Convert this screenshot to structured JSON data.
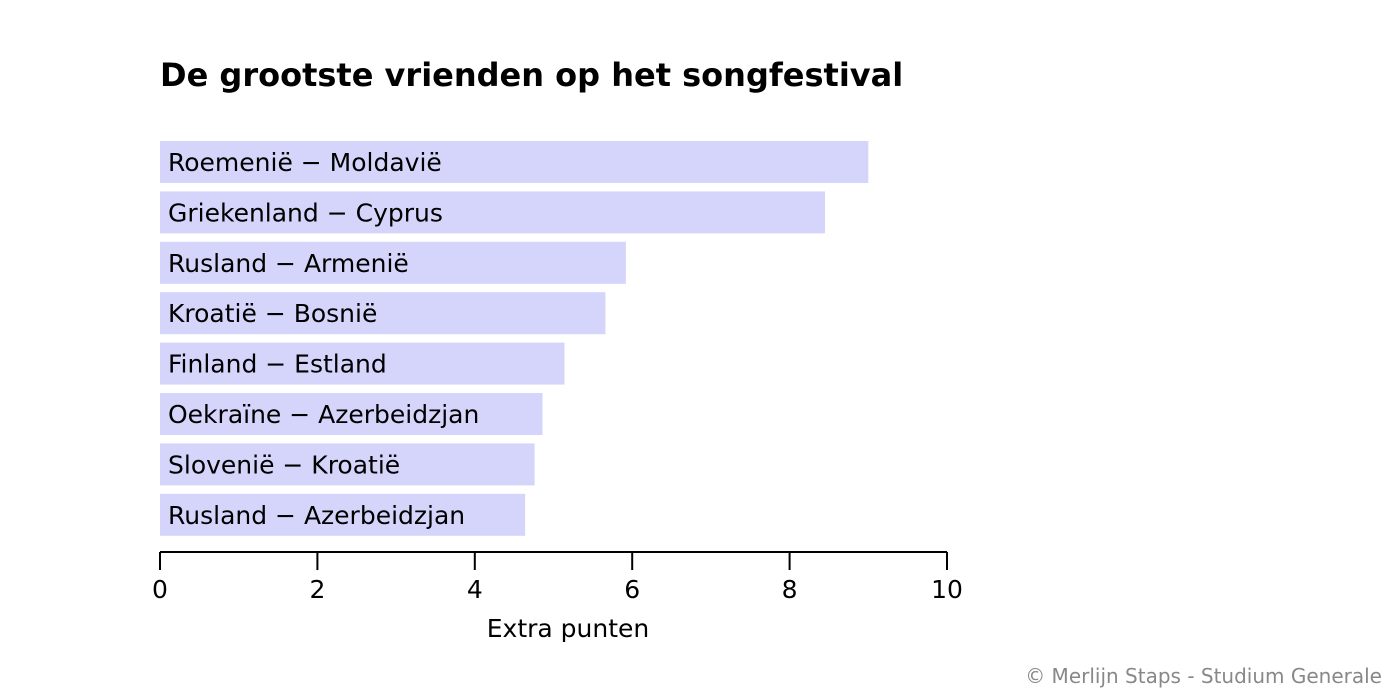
{
  "chart_data": {
    "type": "bar",
    "orientation": "horizontal",
    "title": "De grootste vrienden op het songfestival",
    "xlabel": "Extra punten",
    "ylabel": "",
    "categories": [
      "Roemenië − Moldavië",
      "Griekenland − Cyprus",
      "Rusland − Armenië",
      "Kroatië − Bosnië",
      "Finland − Estland",
      "Oekraïne − Azerbeidzjan",
      "Slovenië − Kroatië",
      "Rusland − Azerbeidzjan"
    ],
    "values": [
      9.0,
      8.45,
      5.92,
      5.66,
      5.14,
      4.86,
      4.76,
      4.64
    ],
    "xlim": [
      0,
      10
    ],
    "xticks": [
      "0",
      "2",
      "4",
      "6",
      "8",
      "10"
    ],
    "grid": false,
    "bar_color": "#d5d5fb",
    "labels_inside_bars": true
  },
  "footer": {
    "credit": "© Merlijn Staps - Studium Generale"
  }
}
